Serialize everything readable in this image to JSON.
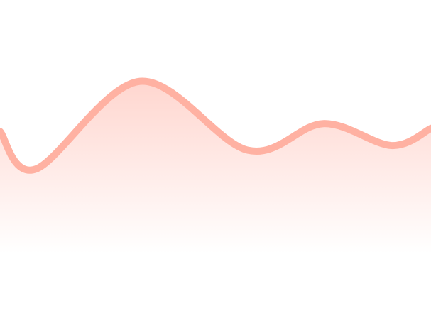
{
  "chart_data": {
    "type": "area",
    "title": "",
    "xlabel": "",
    "ylabel": "",
    "grid": false,
    "legend": "none",
    "xlim": [
      0,
      6
    ],
    "ylim": [
      0,
      10
    ],
    "series": [
      {
        "x": [
          0.0,
          0.5,
          1.95,
          3.45,
          4.5,
          5.45,
          6.0
        ],
        "y": [
          5.8,
          4.6,
          7.4,
          5.2,
          6.05,
          5.35,
          5.9
        ]
      }
    ],
    "colors": {
      "line": "#FFB1A2",
      "fill_top": "#FFD6CF",
      "fill_bottom": "#FFFFFF"
    }
  }
}
